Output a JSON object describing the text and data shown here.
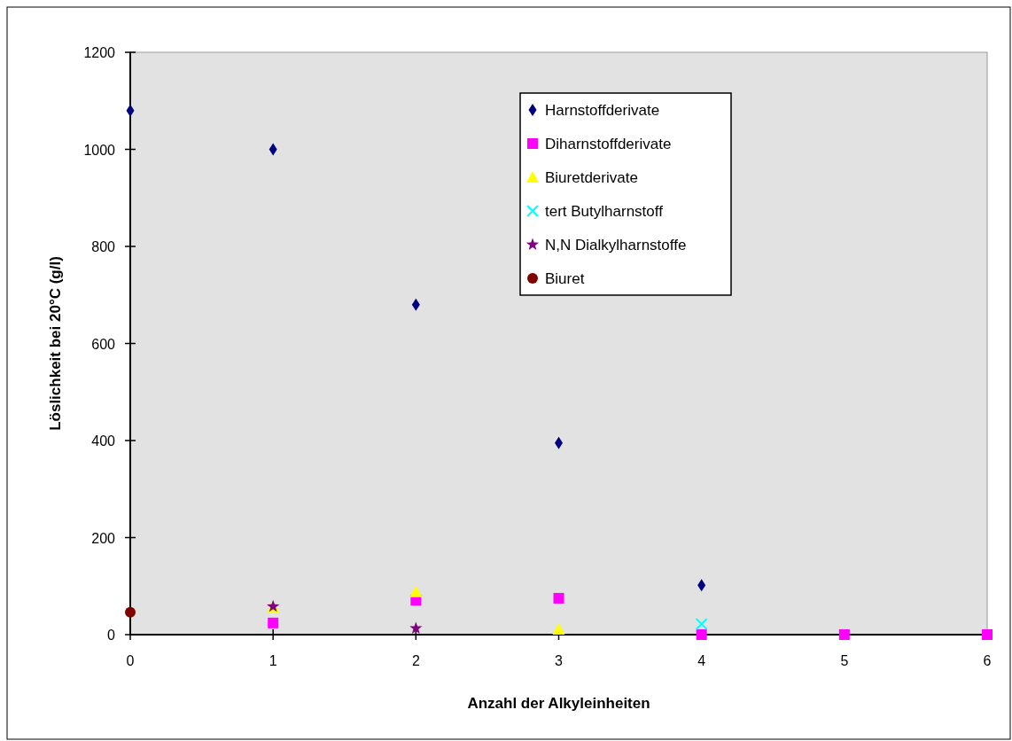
{
  "chart_data": {
    "type": "scatter",
    "xlabel": "Anzahl der Alkyleinheiten",
    "ylabel": "Löslichkeit bei 20°C (g/l)",
    "xlim": [
      0,
      6
    ],
    "xticks": [
      0,
      1,
      2,
      3,
      4,
      5,
      6
    ],
    "ylim": [
      0,
      1200
    ],
    "yticks": [
      0,
      200,
      400,
      600,
      800,
      1000,
      1200
    ],
    "grid": false,
    "legend": "top right",
    "series": [
      {
        "name": "Harnstoffderivate",
        "color": "#000080",
        "marker": "diamond",
        "x": [
          0,
          1,
          2,
          3,
          4
        ],
        "values": [
          1080,
          1000,
          680,
          395,
          102
        ]
      },
      {
        "name": "Diharnstoffderivate",
        "color": "#ff00ff",
        "marker": "square",
        "x": [
          1,
          2,
          3,
          4,
          5,
          6
        ],
        "values": [
          24,
          71,
          75,
          0,
          0,
          0
        ]
      },
      {
        "name": "Biuretderivate",
        "color": "#ffff00",
        "marker": "triangle",
        "x": [
          1,
          2,
          3
        ],
        "values": [
          57,
          88,
          11
        ]
      },
      {
        "name": "tert Butylharnstoff",
        "color": "#00ffff",
        "marker": "cross",
        "x": [
          4
        ],
        "values": [
          22
        ]
      },
      {
        "name": "N,N Dialkylharnstoffe",
        "color": "#800080",
        "marker": "star",
        "x": [
          1,
          2
        ],
        "values": [
          58,
          13
        ]
      },
      {
        "name": "Biuret",
        "color": "#800000",
        "marker": "circle",
        "x": [
          0
        ],
        "values": [
          46
        ]
      }
    ]
  }
}
